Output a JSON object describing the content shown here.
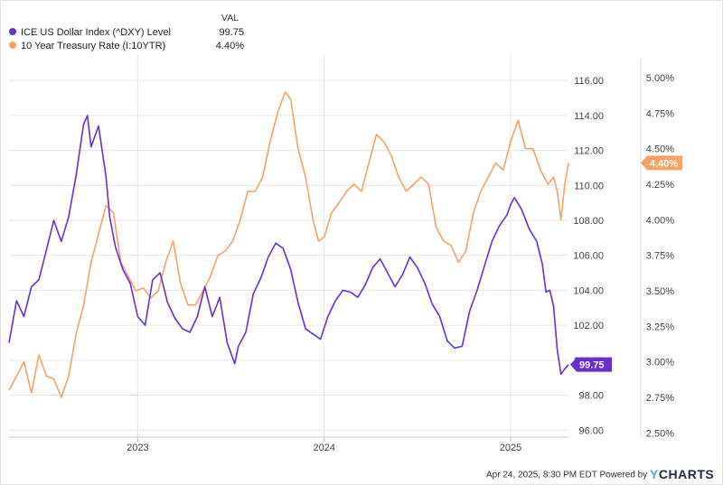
{
  "legend": {
    "header": "VAL",
    "series": [
      {
        "name": "ICE US Dollar Index (^DXY) Level",
        "value": "99.75",
        "color": "#6a2fd0"
      },
      {
        "name": "10 Year Treasury Rate (I:10YTR)",
        "value": "4.40%",
        "color": "#f4a36a"
      }
    ]
  },
  "footer": {
    "timestamp": "Apr 24, 2025, 8:30 PM EDT Powered by",
    "brand_y": "Y",
    "brand_rest": "CHARTS"
  },
  "chart_data": {
    "type": "line",
    "x_ticks": [
      {
        "label": "2023",
        "t": 2023.0
      },
      {
        "label": "2024",
        "t": 2024.0
      },
      {
        "label": "2025",
        "t": 2025.0
      }
    ],
    "xlim": [
      2022.31,
      2025.31
    ],
    "y_left": {
      "ticks": [
        "96.00",
        "98.00",
        "100.00",
        "102.00",
        "104.00",
        "106.00",
        "108.00",
        "110.00",
        "112.00",
        "114.00",
        "116.00"
      ],
      "lim": [
        95.6,
        117.3
      ]
    },
    "y_right": {
      "ticks": [
        "2.50%",
        "2.75%",
        "3.00%",
        "3.25%",
        "3.50%",
        "3.75%",
        "4.00%",
        "4.25%",
        "4.50%",
        "4.75%",
        "5.00%"
      ],
      "lim": [
        2.47,
        5.14
      ]
    },
    "series": [
      {
        "name": "ICE US Dollar Index (^DXY) Level",
        "axis": "left",
        "color": "#6a2fd0",
        "last_label": "99.75",
        "t": [
          2022.31,
          2022.35,
          2022.39,
          2022.43,
          2022.47,
          2022.51,
          2022.55,
          2022.59,
          2022.63,
          2022.67,
          2022.71,
          2022.73,
          2022.75,
          2022.79,
          2022.83,
          2022.85,
          2022.88,
          2022.92,
          2022.96,
          2023.0,
          2023.04,
          2023.08,
          2023.12,
          2023.16,
          2023.2,
          2023.24,
          2023.28,
          2023.32,
          2023.36,
          2023.4,
          2023.44,
          2023.48,
          2023.52,
          2023.54,
          2023.58,
          2023.62,
          2023.66,
          2023.7,
          2023.74,
          2023.78,
          2023.82,
          2023.86,
          2023.9,
          2023.94,
          2023.98,
          2024.02,
          2024.06,
          2024.1,
          2024.14,
          2024.18,
          2024.22,
          2024.26,
          2024.3,
          2024.34,
          2024.38,
          2024.42,
          2024.46,
          2024.5,
          2024.54,
          2024.58,
          2024.62,
          2024.66,
          2024.7,
          2024.74,
          2024.78,
          2024.82,
          2024.86,
          2024.9,
          2024.94,
          2024.98,
          2025.0,
          2025.02,
          2025.06,
          2025.1,
          2025.14,
          2025.17,
          2025.19,
          2025.21,
          2025.23,
          2025.25,
          2025.27,
          2025.29,
          2025.31
        ],
        "values": [
          101.0,
          103.4,
          102.5,
          104.2,
          104.6,
          106.3,
          108.0,
          106.8,
          108.2,
          110.6,
          113.5,
          114.0,
          112.2,
          113.4,
          110.5,
          108.2,
          106.5,
          105.2,
          104.4,
          102.5,
          102.0,
          104.6,
          105.0,
          103.3,
          102.4,
          101.8,
          101.6,
          102.5,
          104.2,
          102.5,
          103.6,
          101.0,
          99.8,
          100.8,
          101.6,
          103.8,
          104.7,
          105.9,
          106.7,
          106.4,
          105.2,
          103.3,
          101.8,
          101.5,
          101.2,
          102.5,
          103.4,
          104.0,
          103.9,
          103.6,
          104.3,
          105.3,
          105.8,
          105.0,
          104.2,
          104.9,
          105.9,
          105.3,
          104.4,
          103.2,
          102.5,
          101.1,
          100.7,
          100.8,
          102.8,
          104.0,
          105.4,
          106.8,
          107.7,
          108.3,
          108.9,
          109.3,
          108.6,
          107.5,
          106.8,
          105.5,
          103.9,
          104.0,
          103.1,
          100.6,
          99.2,
          99.5,
          99.75
        ]
      },
      {
        "name": "10 Year Treasury Rate (I:10YTR)",
        "axis": "right",
        "color": "#f4a36a",
        "last_label": "4.40%",
        "t": [
          2022.31,
          2022.35,
          2022.39,
          2022.43,
          2022.47,
          2022.51,
          2022.55,
          2022.59,
          2022.63,
          2022.67,
          2022.71,
          2022.75,
          2022.79,
          2022.83,
          2022.87,
          2022.91,
          2022.95,
          2022.99,
          2023.03,
          2023.07,
          2023.11,
          2023.15,
          2023.19,
          2023.23,
          2023.27,
          2023.31,
          2023.35,
          2023.39,
          2023.43,
          2023.47,
          2023.51,
          2023.55,
          2023.59,
          2023.63,
          2023.67,
          2023.71,
          2023.75,
          2023.79,
          2023.82,
          2023.86,
          2023.9,
          2023.94,
          2023.97,
          2024.0,
          2024.04,
          2024.08,
          2024.12,
          2024.16,
          2024.2,
          2024.24,
          2024.28,
          2024.32,
          2024.36,
          2024.4,
          2024.44,
          2024.48,
          2024.52,
          2024.56,
          2024.6,
          2024.64,
          2024.68,
          2024.72,
          2024.76,
          2024.8,
          2024.84,
          2024.88,
          2024.92,
          2024.96,
          2025.0,
          2025.04,
          2025.08,
          2025.12,
          2025.16,
          2025.2,
          2025.23,
          2025.25,
          2025.27,
          2025.29,
          2025.31
        ],
        "values": [
          2.8,
          2.9,
          3.0,
          2.78,
          3.05,
          2.9,
          2.88,
          2.75,
          2.9,
          3.2,
          3.4,
          3.7,
          3.9,
          4.1,
          4.05,
          3.7,
          3.6,
          3.5,
          3.52,
          3.45,
          3.5,
          3.7,
          3.85,
          3.55,
          3.4,
          3.4,
          3.5,
          3.6,
          3.75,
          3.78,
          3.85,
          4.0,
          4.2,
          4.2,
          4.3,
          4.55,
          4.75,
          4.9,
          4.85,
          4.5,
          4.3,
          4.0,
          3.85,
          3.88,
          4.05,
          4.12,
          4.2,
          4.25,
          4.2,
          4.4,
          4.6,
          4.55,
          4.45,
          4.3,
          4.2,
          4.25,
          4.3,
          4.25,
          3.95,
          3.85,
          3.82,
          3.7,
          3.78,
          4.05,
          4.2,
          4.3,
          4.4,
          4.35,
          4.55,
          4.7,
          4.5,
          4.5,
          4.35,
          4.25,
          4.3,
          4.2,
          4.0,
          4.25,
          4.4
        ]
      }
    ]
  }
}
